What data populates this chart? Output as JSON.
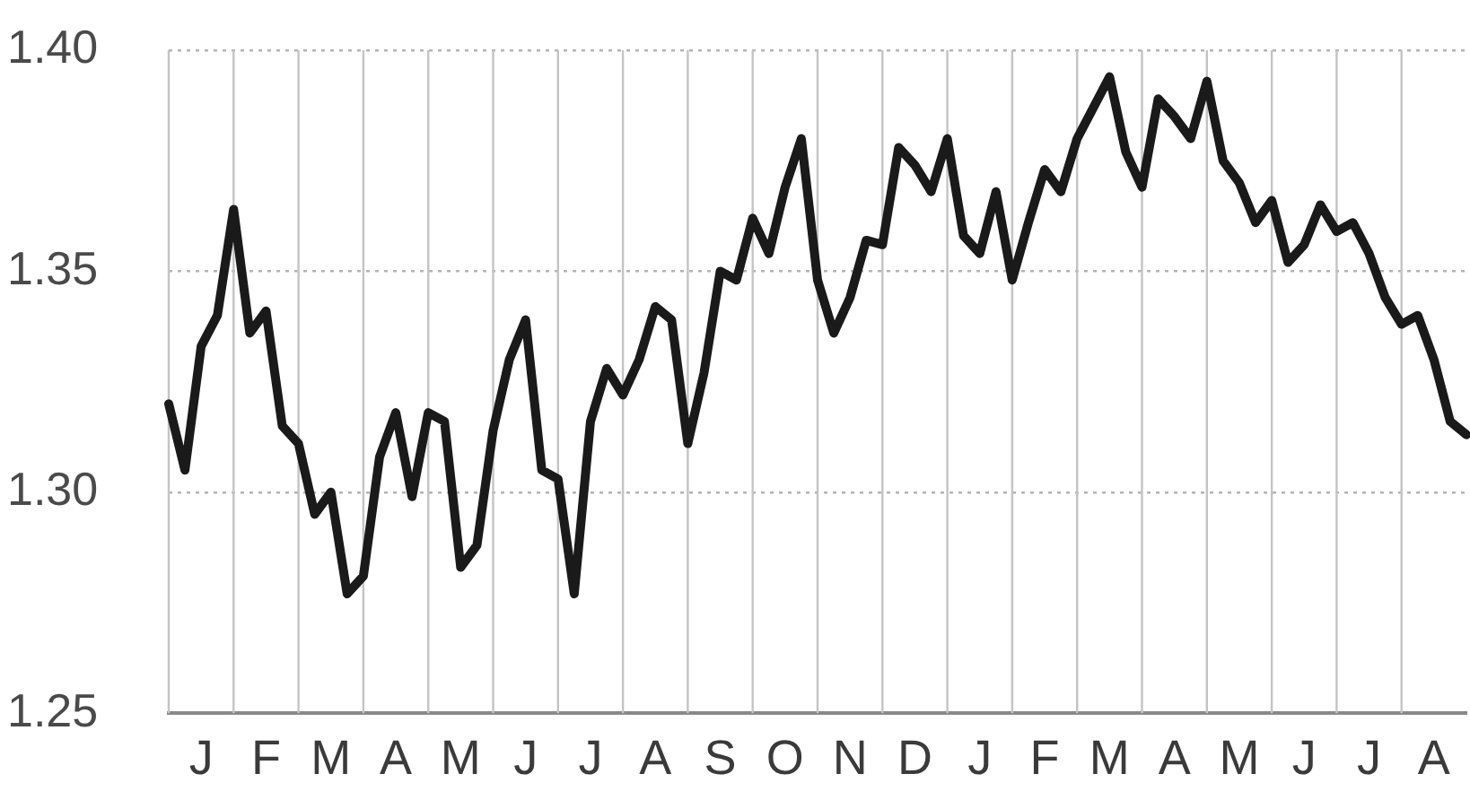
{
  "chart_data": {
    "type": "line",
    "ylim": [
      1.25,
      1.4
    ],
    "yticks": [
      {
        "value": 1.25,
        "label": "1.25"
      },
      {
        "value": 1.3,
        "label": "1.30"
      },
      {
        "value": 1.35,
        "label": "1.35"
      },
      {
        "value": 1.4,
        "label": "1.40"
      }
    ],
    "categories": [
      null,
      null,
      "J",
      null,
      null,
      null,
      "F",
      null,
      null,
      null,
      "M",
      null,
      null,
      null,
      "A",
      null,
      null,
      null,
      "M",
      null,
      null,
      null,
      "J",
      null,
      null,
      null,
      "J",
      null,
      null,
      null,
      "A",
      null,
      null,
      null,
      "S",
      null,
      null,
      null,
      "O",
      null,
      null,
      null,
      "N",
      null,
      null,
      null,
      "D",
      null,
      null,
      null,
      "J",
      null,
      null,
      null,
      "F",
      null,
      null,
      null,
      "M",
      null,
      null,
      null,
      "A",
      null,
      null,
      null,
      "M",
      null,
      null,
      null,
      "J",
      null,
      null,
      null,
      "J",
      null,
      null,
      null,
      "A",
      null,
      null
    ],
    "grid": true,
    "marker": "none",
    "line_style": "solid",
    "series": [
      {
        "color": "#1a1a1a",
        "values": [
          1.32,
          1.305,
          1.333,
          1.34,
          1.364,
          1.336,
          1.341,
          1.315,
          1.311,
          1.295,
          1.3,
          1.277,
          1.281,
          1.308,
          1.318,
          1.299,
          1.318,
          1.316,
          1.283,
          1.288,
          1.314,
          1.33,
          1.339,
          1.305,
          1.303,
          1.277,
          1.316,
          1.328,
          1.322,
          1.33,
          1.342,
          1.339,
          1.311,
          1.327,
          1.35,
          1.348,
          1.362,
          1.354,
          1.369,
          1.38,
          1.348,
          1.336,
          1.344,
          1.357,
          1.356,
          1.378,
          1.374,
          1.368,
          1.38,
          1.358,
          1.354,
          1.368,
          1.348,
          1.361,
          1.373,
          1.368,
          1.38,
          1.387,
          1.394,
          1.377,
          1.369,
          1.389,
          1.385,
          1.38,
          1.393,
          1.375,
          1.37,
          1.361,
          1.366,
          1.352,
          1.356,
          1.365,
          1.359,
          1.361,
          1.354,
          1.344,
          1.338,
          1.34,
          1.33,
          1.316,
          1.313
        ]
      }
    ]
  }
}
